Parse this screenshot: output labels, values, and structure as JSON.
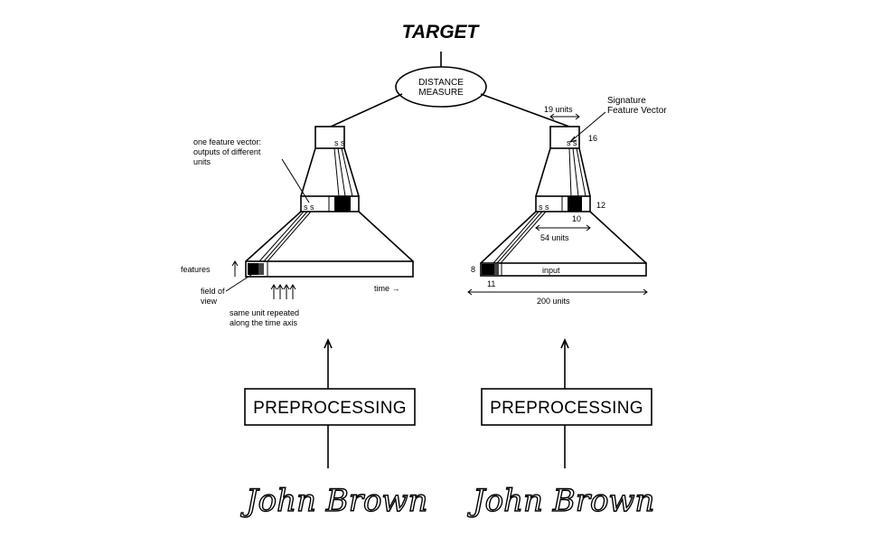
{
  "title": "TARGET",
  "distance_measure": {
    "line1": "DISTANCE",
    "line2": "MEASURE"
  },
  "left_network": {
    "one_feature_vector": [
      "one feature vector:",
      "outputs of different",
      "units"
    ],
    "features_label": "features",
    "field_of_view": [
      "field of",
      "view"
    ],
    "time_label": "time →",
    "same_unit_repeated": [
      "same unit repeated",
      "along the time axis"
    ]
  },
  "right_network": {
    "units_19": "19 units",
    "signature_feature_vector": [
      "Signature",
      "Feature Vector"
    ],
    "num_16": "16",
    "num_12": "12",
    "num_10": "10",
    "units_54": "54 units",
    "num_8": "8",
    "input_label": "input",
    "num_11": "11",
    "units_200": "200 units"
  },
  "preprocessing_left": "PREPROCESSING",
  "preprocessing_right": "PREPROCESSING",
  "signature_left": "John Brown",
  "signature_right": "John Brown"
}
